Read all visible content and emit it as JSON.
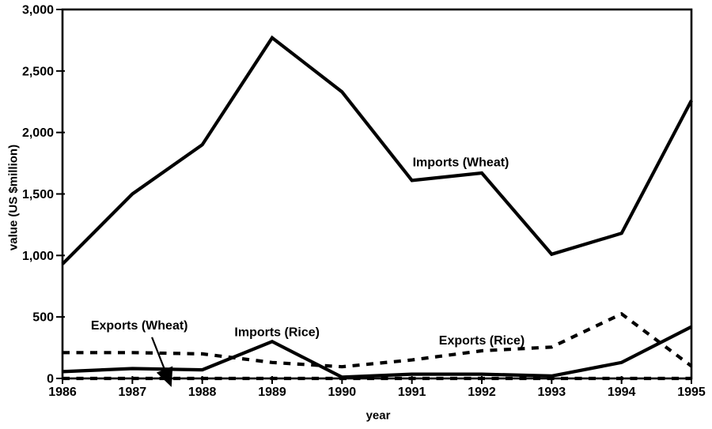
{
  "figure": {
    "background": "#ffffff",
    "ink": "#000000"
  },
  "chart_data": {
    "type": "line",
    "xlabel": "year",
    "ylabel": "value (US $million)",
    "x": [
      1986,
      1987,
      1988,
      1989,
      1990,
      1991,
      1992,
      1993,
      1994,
      1995
    ],
    "x_tick_labels": [
      "1986",
      "1987",
      "1988",
      "1989",
      "1990",
      "1991",
      "1992",
      "1993",
      "1994",
      "1995"
    ],
    "y_ticks": [
      0,
      500,
      1000,
      1500,
      2000,
      2500,
      3000
    ],
    "y_tick_labels": [
      "0",
      "500",
      "1,000",
      "1,500",
      "2,000",
      "2,500",
      "3,000"
    ],
    "ylim": [
      0,
      3000
    ],
    "grid": false,
    "legend": "inline-labels",
    "series": [
      {
        "name": "Imports (Wheat)",
        "style": "solid",
        "values": [
          930,
          1500,
          1900,
          2770,
          2330,
          1610,
          1670,
          1010,
          1180,
          2260
        ]
      },
      {
        "name": "Imports (Rice)",
        "style": "solid",
        "values": [
          55,
          80,
          70,
          300,
          10,
          35,
          35,
          20,
          130,
          420
        ]
      },
      {
        "name": "Exports (Rice)",
        "style": "dashed",
        "values": [
          210,
          210,
          200,
          130,
          95,
          150,
          225,
          255,
          525,
          100
        ]
      },
      {
        "name": "Exports (Wheat)",
        "style": "dashed",
        "values": [
          0,
          0,
          0,
          0,
          0,
          0,
          0,
          0,
          0,
          0
        ]
      }
    ],
    "annotations": [
      {
        "text": "Imports (Wheat)",
        "year": 1991.7,
        "value": 1760
      },
      {
        "text": "Exports (Wheat)",
        "year": 1987.1,
        "value": 435,
        "arrow": {
          "from_year": 1987.28,
          "from_value": 335,
          "to_year": 1987.56,
          "to_value": -70
        }
      },
      {
        "text": "Imports (Rice)",
        "year": 1989.07,
        "value": 380
      },
      {
        "text": "Exports (Rice)",
        "year": 1992.0,
        "value": 310
      }
    ]
  }
}
